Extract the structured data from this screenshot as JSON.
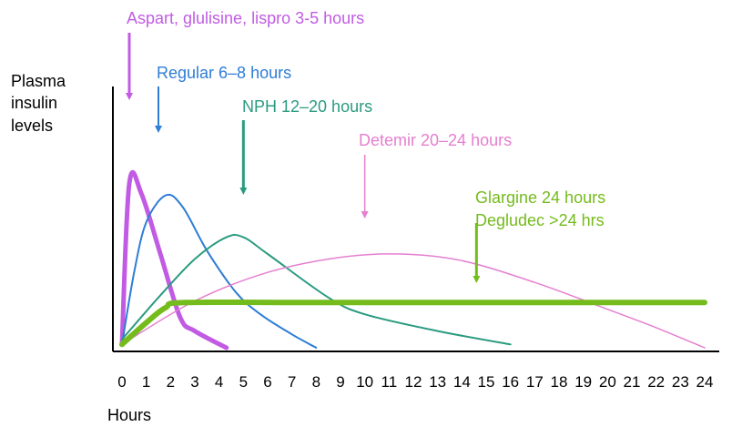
{
  "chart_data": {
    "type": "line",
    "ylabel": "Plasma insulin levels",
    "xlabel": "Hours",
    "xlim": [
      0,
      24
    ],
    "ylim": [
      0,
      1
    ],
    "x_ticks": [
      "0",
      "1",
      "2",
      "3",
      "4",
      "5",
      "6",
      "7",
      "8",
      "9",
      "10",
      "11",
      "12",
      "13",
      "14",
      "15",
      "16",
      "17",
      "18",
      "19",
      "20",
      "21",
      "22",
      "23",
      "24"
    ],
    "grid": false,
    "series": [
      {
        "name": "Aspart, glulisine, lispro 3-5 hours",
        "color": "#c25be4",
        "points": [
          [
            0,
            0.02
          ],
          [
            0.3,
            0.98
          ],
          [
            0.8,
            0.92
          ],
          [
            1.6,
            0.55
          ],
          [
            2.4,
            0.18
          ],
          [
            3.0,
            0.1
          ],
          [
            4.3,
            0.0
          ]
        ],
        "label": "Aspart, glulisine, lispro 3-5 hours",
        "arrow_x": 0.3
      },
      {
        "name": "Regular 6–8 hours",
        "color": "#2e7dd6",
        "points": [
          [
            0,
            0.02
          ],
          [
            0.5,
            0.45
          ],
          [
            1.0,
            0.75
          ],
          [
            1.8,
            0.91
          ],
          [
            2.5,
            0.84
          ],
          [
            3.5,
            0.58
          ],
          [
            4.7,
            0.33
          ],
          [
            5.7,
            0.2
          ],
          [
            7.0,
            0.08
          ],
          [
            8.0,
            0.0
          ]
        ],
        "label": "Regular 6–8 hours",
        "arrow_x": 1.5
      },
      {
        "name": "NPH 12–20 hours",
        "color": "#2a9b80",
        "points": [
          [
            0,
            0.05
          ],
          [
            1.5,
            0.3
          ],
          [
            3.0,
            0.53
          ],
          [
            4.3,
            0.66
          ],
          [
            5.0,
            0.66
          ],
          [
            6.0,
            0.56
          ],
          [
            8.5,
            0.3
          ],
          [
            10.0,
            0.2
          ],
          [
            13.0,
            0.1
          ],
          [
            16.0,
            0.02
          ]
        ],
        "label": "NPH 12–20 hours",
        "arrow_x": 5.0
      },
      {
        "name": "Detemir 20–24 hours",
        "color": "#e57fd0",
        "points": [
          [
            0,
            0.02
          ],
          [
            3,
            0.28
          ],
          [
            6,
            0.45
          ],
          [
            9,
            0.54
          ],
          [
            11.5,
            0.56
          ],
          [
            14,
            0.52
          ],
          [
            17,
            0.39
          ],
          [
            20,
            0.23
          ],
          [
            22,
            0.12
          ],
          [
            24,
            0.0
          ]
        ],
        "label": "Detemir 20–24 hours",
        "arrow_x": 10.0
      },
      {
        "name": "Glargine 24 hours / Degludec >24 hrs",
        "color": "#74bb1c",
        "points": [
          [
            0,
            0.02
          ],
          [
            1,
            0.15
          ],
          [
            1.8,
            0.24
          ],
          [
            2.6,
            0.27
          ],
          [
            8,
            0.27
          ],
          [
            24,
            0.27
          ]
        ],
        "label": "Glargine 24 hours",
        "label2": "Degludec  >24 hrs",
        "arrow_x": 14.6
      }
    ]
  }
}
